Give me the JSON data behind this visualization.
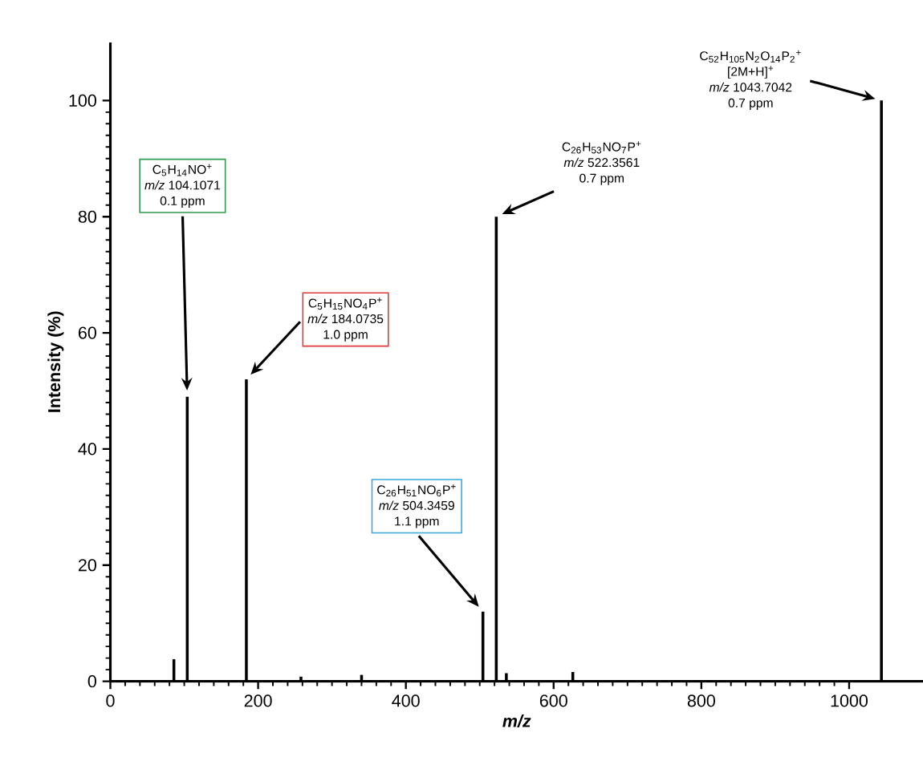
{
  "chart_data": {
    "type": "bar",
    "xlabel": "*m/z*",
    "ylabel": "Intensity (%)",
    "x": [
      86,
      104.1,
      124,
      184.1,
      258,
      340,
      504.3,
      522.4,
      536,
      626,
      1043.7
    ],
    "values": [
      3.8,
      49,
      null,
      52,
      0.8,
      1.1,
      12,
      80,
      1.4,
      1.6,
      100
    ],
    "color": "#000000",
    "xlim": [
      0,
      1100
    ],
    "xticks": [
      0,
      200,
      400,
      600,
      800,
      1000
    ],
    "ylim": [
      0,
      110
    ],
    "yticks": [
      0,
      20,
      40,
      60,
      80,
      100
    ],
    "annotations": [
      "C$_{5}$H$_{14}$NO$^{+}$",
      "*m/z* 104.1071",
      "0.1 ppm",
      "C$_{5}$H$_{15}$NO$_{4}$P$^{+}$",
      "*m/z* 184.0735",
      "1.0 ppm",
      "C$_{26}$H$_{51}$NO$_{6}$P$^{+}$",
      "*m/z* 504.3459",
      "1.1 ppm",
      "C$_{26}$H$_{53}$NO$_{7}$P$^{+}$",
      "*m/z* 522.3561",
      "0.7 ppm",
      "C$_{52}$H$_{105}$N$_{2}$O$_{14}$P$_{2}$$^{+}$",
      "[2M+H]$^{+}$",
      "*m/z* 1043.7042",
      "0.7 ppm"
    ]
  }
}
